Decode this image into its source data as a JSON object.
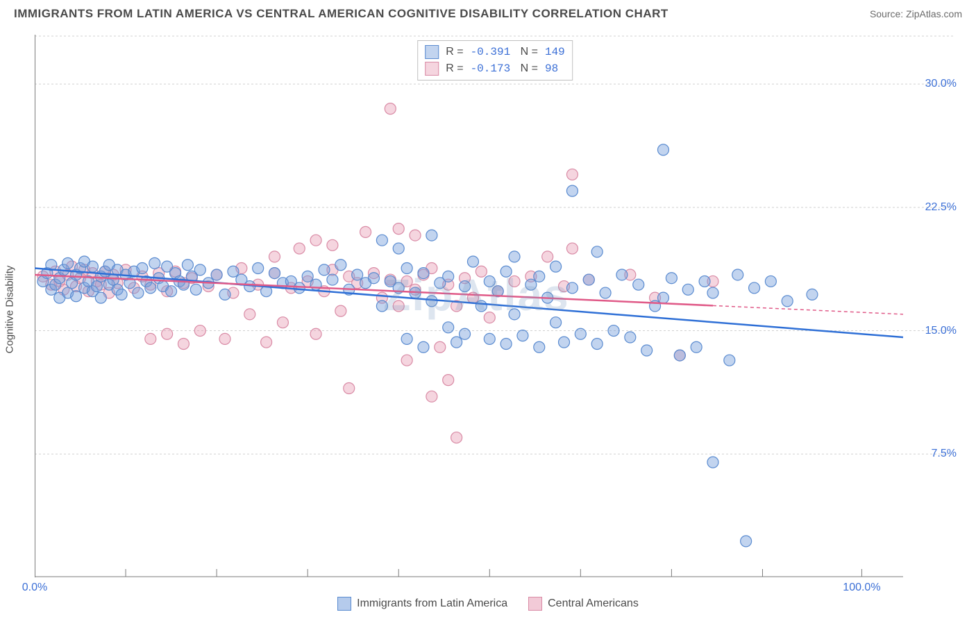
{
  "header": {
    "title": "IMMIGRANTS FROM LATIN AMERICA VS CENTRAL AMERICAN COGNITIVE DISABILITY CORRELATION CHART",
    "source": "Source: ZipAtlas.com"
  },
  "chart": {
    "type": "scatter",
    "y_axis_label": "Cognitive Disability",
    "watermark": "ZipAtlas",
    "background_color": "#ffffff",
    "grid_color": "#d0d0d0",
    "axis_color": "#7a7a7a",
    "tick_label_color": "#3b6fd6",
    "xlim": [
      0,
      105
    ],
    "ylim": [
      0,
      33
    ],
    "xtick_positions": [
      0,
      11,
      22,
      33,
      44,
      55,
      66,
      77,
      88,
      100
    ],
    "xtick_labels": {
      "0": "0.0%",
      "100": "100.0%"
    },
    "ytick_positions": [
      7.5,
      15.0,
      22.5,
      30.0
    ],
    "ytick_labels": [
      "7.5%",
      "15.0%",
      "22.5%",
      "30.0%"
    ],
    "series": [
      {
        "name": "Immigrants from Latin America",
        "stats": {
          "R": "-0.391",
          "N": "149"
        },
        "point_fill": "rgba(120, 160, 220, 0.45)",
        "point_stroke": "#5a8bd0",
        "line_color": "#2e6fd6",
        "trend": {
          "x1": 0,
          "y1": 18.8,
          "x2": 105,
          "y2": 14.6,
          "solid_until": 105
        },
        "points": [
          [
            1,
            18.0
          ],
          [
            1.5,
            18.5
          ],
          [
            2,
            17.5
          ],
          [
            2,
            19.0
          ],
          [
            2.5,
            17.8
          ],
          [
            3,
            18.2
          ],
          [
            3,
            17.0
          ],
          [
            3.5,
            18.7
          ],
          [
            4,
            17.3
          ],
          [
            4,
            19.1
          ],
          [
            4.5,
            17.9
          ],
          [
            5,
            18.4
          ],
          [
            5,
            17.1
          ],
          [
            5.5,
            18.8
          ],
          [
            6,
            17.6
          ],
          [
            6,
            19.2
          ],
          [
            6.5,
            18.0
          ],
          [
            7,
            17.4
          ],
          [
            7,
            18.9
          ],
          [
            7.5,
            17.7
          ],
          [
            8,
            18.3
          ],
          [
            8,
            17.0
          ],
          [
            8.5,
            18.6
          ],
          [
            9,
            17.8
          ],
          [
            9,
            19.0
          ],
          [
            9.5,
            18.1
          ],
          [
            10,
            17.5
          ],
          [
            10,
            18.7
          ],
          [
            10.5,
            17.2
          ],
          [
            11,
            18.4
          ],
          [
            11.5,
            17.9
          ],
          [
            12,
            18.6
          ],
          [
            12.5,
            17.3
          ],
          [
            13,
            18.8
          ],
          [
            13.5,
            18.0
          ],
          [
            14,
            17.6
          ],
          [
            14.5,
            19.1
          ],
          [
            15,
            18.2
          ],
          [
            15.5,
            17.7
          ],
          [
            16,
            18.9
          ],
          [
            16.5,
            17.4
          ],
          [
            17,
            18.5
          ],
          [
            17.5,
            18.0
          ],
          [
            18,
            17.8
          ],
          [
            18.5,
            19.0
          ],
          [
            19,
            18.3
          ],
          [
            19.5,
            17.5
          ],
          [
            20,
            18.7
          ],
          [
            21,
            17.9
          ],
          [
            22,
            18.4
          ],
          [
            23,
            17.2
          ],
          [
            24,
            18.6
          ],
          [
            25,
            18.1
          ],
          [
            26,
            17.7
          ],
          [
            27,
            18.8
          ],
          [
            28,
            17.4
          ],
          [
            29,
            18.5
          ],
          [
            30,
            17.9
          ],
          [
            31,
            18.0
          ],
          [
            32,
            17.6
          ],
          [
            33,
            18.3
          ],
          [
            34,
            17.8
          ],
          [
            35,
            18.7
          ],
          [
            36,
            18.1
          ],
          [
            37,
            19.0
          ],
          [
            38,
            17.5
          ],
          [
            39,
            18.4
          ],
          [
            40,
            17.9
          ],
          [
            41,
            18.2
          ],
          [
            42,
            20.5
          ],
          [
            42,
            16.5
          ],
          [
            43,
            18.0
          ],
          [
            44,
            17.6
          ],
          [
            44,
            20.0
          ],
          [
            45,
            18.8
          ],
          [
            45,
            14.5
          ],
          [
            46,
            17.3
          ],
          [
            47,
            18.5
          ],
          [
            47,
            14.0
          ],
          [
            48,
            16.8
          ],
          [
            48,
            20.8
          ],
          [
            49,
            17.9
          ],
          [
            50,
            18.3
          ],
          [
            50,
            15.2
          ],
          [
            51,
            14.3
          ],
          [
            52,
            17.7
          ],
          [
            52,
            14.8
          ],
          [
            53,
            19.2
          ],
          [
            54,
            16.5
          ],
          [
            55,
            18.0
          ],
          [
            55,
            14.5
          ],
          [
            56,
            17.4
          ],
          [
            57,
            18.6
          ],
          [
            57,
            14.2
          ],
          [
            58,
            16.0
          ],
          [
            58,
            19.5
          ],
          [
            59,
            14.7
          ],
          [
            60,
            17.8
          ],
          [
            61,
            18.3
          ],
          [
            61,
            14.0
          ],
          [
            62,
            17.0
          ],
          [
            63,
            15.5
          ],
          [
            63,
            18.9
          ],
          [
            64,
            14.3
          ],
          [
            65,
            17.6
          ],
          [
            65,
            23.5
          ],
          [
            66,
            14.8
          ],
          [
            67,
            18.1
          ],
          [
            68,
            14.2
          ],
          [
            68,
            19.8
          ],
          [
            69,
            17.3
          ],
          [
            70,
            15.0
          ],
          [
            71,
            18.4
          ],
          [
            72,
            14.6
          ],
          [
            73,
            17.8
          ],
          [
            74,
            13.8
          ],
          [
            75,
            16.5
          ],
          [
            76,
            17.0
          ],
          [
            76,
            26.0
          ],
          [
            77,
            18.2
          ],
          [
            78,
            13.5
          ],
          [
            79,
            17.5
          ],
          [
            80,
            14.0
          ],
          [
            81,
            18.0
          ],
          [
            82,
            17.3
          ],
          [
            82,
            7.0
          ],
          [
            84,
            13.2
          ],
          [
            85,
            18.4
          ],
          [
            86,
            2.2
          ],
          [
            87,
            17.6
          ],
          [
            89,
            18.0
          ],
          [
            91,
            16.8
          ],
          [
            94,
            17.2
          ]
        ]
      },
      {
        "name": "Central Americans",
        "stats": {
          "R": "-0.173",
          "N": " 98"
        },
        "point_fill": "rgba(230, 150, 175, 0.40)",
        "point_stroke": "#d98aa5",
        "line_color": "#e05a88",
        "trend": {
          "x1": 0,
          "y1": 18.4,
          "x2": 105,
          "y2": 16.0,
          "solid_until": 82
        },
        "points": [
          [
            1,
            18.3
          ],
          [
            2,
            17.8
          ],
          [
            2.5,
            18.6
          ],
          [
            3,
            18.0
          ],
          [
            3.5,
            17.5
          ],
          [
            4,
            18.4
          ],
          [
            4.5,
            18.9
          ],
          [
            5,
            17.7
          ],
          [
            5.5,
            18.2
          ],
          [
            6,
            18.7
          ],
          [
            6.5,
            17.4
          ],
          [
            7,
            18.5
          ],
          [
            7.5,
            18.0
          ],
          [
            8,
            17.8
          ],
          [
            8.5,
            18.6
          ],
          [
            9,
            17.3
          ],
          [
            9.5,
            18.4
          ],
          [
            10,
            17.9
          ],
          [
            11,
            18.7
          ],
          [
            12,
            17.6
          ],
          [
            13,
            18.3
          ],
          [
            14,
            14.5
          ],
          [
            14,
            17.8
          ],
          [
            15,
            18.5
          ],
          [
            16,
            14.8
          ],
          [
            16,
            17.4
          ],
          [
            17,
            18.6
          ],
          [
            18,
            14.2
          ],
          [
            18,
            17.9
          ],
          [
            19,
            18.2
          ],
          [
            20,
            15.0
          ],
          [
            21,
            17.7
          ],
          [
            22,
            18.4
          ],
          [
            23,
            14.5
          ],
          [
            24,
            17.3
          ],
          [
            25,
            18.8
          ],
          [
            26,
            16.0
          ],
          [
            27,
            17.8
          ],
          [
            28,
            14.3
          ],
          [
            29,
            18.5
          ],
          [
            29,
            19.5
          ],
          [
            30,
            15.5
          ],
          [
            31,
            17.6
          ],
          [
            32,
            20.0
          ],
          [
            33,
            18.0
          ],
          [
            34,
            14.8
          ],
          [
            34,
            20.5
          ],
          [
            35,
            17.4
          ],
          [
            36,
            18.7
          ],
          [
            36,
            20.2
          ],
          [
            37,
            16.2
          ],
          [
            38,
            18.3
          ],
          [
            38,
            11.5
          ],
          [
            39,
            17.9
          ],
          [
            40,
            21.0
          ],
          [
            41,
            18.5
          ],
          [
            42,
            17.0
          ],
          [
            43,
            18.1
          ],
          [
            43,
            28.5
          ],
          [
            44,
            16.5
          ],
          [
            44,
            21.2
          ],
          [
            45,
            18.0
          ],
          [
            45,
            13.2
          ],
          [
            46,
            17.5
          ],
          [
            46,
            20.8
          ],
          [
            47,
            18.4
          ],
          [
            48,
            11.0
          ],
          [
            48,
            18.8
          ],
          [
            49,
            14.0
          ],
          [
            50,
            17.8
          ],
          [
            50,
            12.0
          ],
          [
            51,
            16.5
          ],
          [
            51,
            8.5
          ],
          [
            52,
            18.2
          ],
          [
            53,
            17.0
          ],
          [
            54,
            18.6
          ],
          [
            55,
            15.8
          ],
          [
            56,
            17.4
          ],
          [
            58,
            18.0
          ],
          [
            60,
            18.3
          ],
          [
            62,
            19.5
          ],
          [
            64,
            17.7
          ],
          [
            65,
            20.0
          ],
          [
            65,
            24.5
          ],
          [
            67,
            18.1
          ],
          [
            72,
            18.4
          ],
          [
            75,
            17.0
          ],
          [
            78,
            13.5
          ],
          [
            82,
            18.0
          ]
        ]
      }
    ],
    "legend_bottom": [
      {
        "label": "Immigrants from Latin America",
        "fill": "rgba(120, 160, 220, 0.55)",
        "stroke": "#5a8bd0"
      },
      {
        "label": "Central Americans",
        "fill": "rgba(230, 150, 175, 0.50)",
        "stroke": "#d98aa5"
      }
    ],
    "marker_radius": 8
  }
}
